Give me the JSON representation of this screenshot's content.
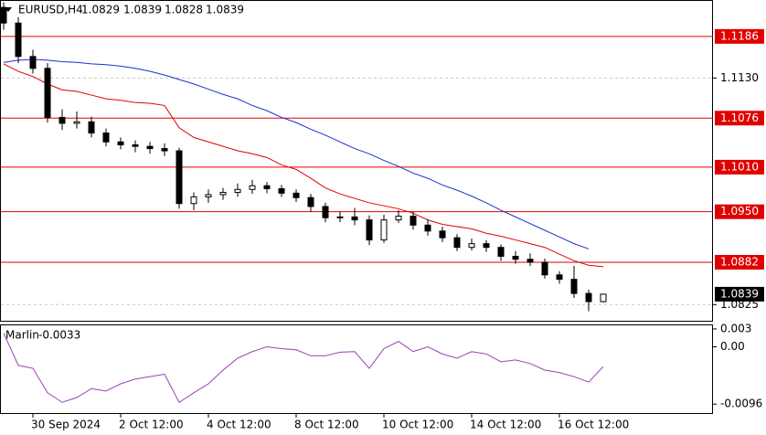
{
  "chart_data": [
    {
      "type": "candlestick",
      "title": "EURUSD,H4",
      "categories": [
        null,
        null,
        "30 Sep 2024",
        null,
        null,
        null,
        null,
        null,
        "2 Oct 12:00",
        null,
        null,
        null,
        null,
        null,
        "4 Oct 12:00",
        null,
        null,
        null,
        null,
        null,
        "8 Oct 12:00",
        null,
        null,
        null,
        null,
        null,
        "10 Oct 12:00",
        null,
        null,
        null,
        null,
        null,
        "14 Oct 12:00",
        null,
        null,
        null,
        null,
        null,
        "16 Oct 12:00",
        null,
        null,
        null
      ],
      "ohlc": [
        [
          1.1225,
          1.1232,
          1.1195,
          1.1204
        ],
        [
          1.1204,
          1.1212,
          1.115,
          1.1159
        ],
        [
          1.1159,
          1.1168,
          1.1136,
          1.1143
        ],
        [
          1.1143,
          1.115,
          1.107,
          1.1077
        ],
        [
          1.1077,
          1.1088,
          1.106,
          1.1069
        ],
        [
          1.1069,
          1.1085,
          1.1062,
          1.1071
        ],
        [
          1.1071,
          1.1078,
          1.105,
          1.1056
        ],
        [
          1.1056,
          1.1062,
          1.1038,
          1.1044
        ],
        [
          1.1044,
          1.105,
          1.1034,
          1.104
        ],
        [
          1.104,
          1.1046,
          1.103,
          1.1038
        ],
        [
          1.1038,
          1.1044,
          1.1028,
          1.1035
        ],
        [
          1.1035,
          1.1042,
          1.1025,
          1.1032
        ],
        [
          1.1032,
          1.1036,
          1.0954,
          1.0961
        ],
        [
          1.0961,
          1.0976,
          1.0952,
          1.097
        ],
        [
          1.097,
          1.098,
          1.0962,
          1.0973
        ],
        [
          1.0973,
          1.0982,
          1.0966,
          1.0976
        ],
        [
          1.0976,
          1.0988,
          1.097,
          1.098
        ],
        [
          1.098,
          1.0993,
          1.0974,
          1.0985
        ],
        [
          1.0985,
          1.099,
          1.0975,
          1.0981
        ],
        [
          1.0981,
          1.0986,
          1.097,
          1.0975
        ],
        [
          1.0975,
          1.098,
          1.0963,
          1.0969
        ],
        [
          1.0969,
          1.0974,
          1.095,
          1.0957
        ],
        [
          1.0957,
          1.0962,
          1.0936,
          1.0942
        ],
        [
          1.0942,
          1.095,
          1.0936,
          1.0943
        ],
        [
          1.0943,
          1.0955,
          1.0932,
          1.0939
        ],
        [
          1.0939,
          1.0945,
          1.0905,
          1.0912
        ],
        [
          1.0912,
          1.0946,
          1.0908,
          1.0939
        ],
        [
          1.0939,
          1.0952,
          1.0935,
          1.0944
        ],
        [
          1.0944,
          1.095,
          1.0926,
          1.0932
        ],
        [
          1.0932,
          1.094,
          1.0918,
          1.0924
        ],
        [
          1.0924,
          1.093,
          1.0909,
          1.0915
        ],
        [
          1.0915,
          1.092,
          1.0897,
          1.0902
        ],
        [
          1.0902,
          1.0914,
          1.0898,
          1.0907
        ],
        [
          1.0907,
          1.0912,
          1.0896,
          1.0902
        ],
        [
          1.0902,
          1.0906,
          1.0884,
          1.089
        ],
        [
          1.089,
          1.0897,
          1.088,
          1.0886
        ],
        [
          1.0886,
          1.0894,
          1.0877,
          1.0882
        ],
        [
          1.0882,
          1.0887,
          1.086,
          1.0865
        ],
        [
          1.0865,
          1.087,
          1.0853,
          1.0859
        ],
        [
          1.0859,
          1.0877,
          1.0834,
          1.084
        ],
        [
          1.084,
          1.0845,
          1.0816,
          1.0829
        ],
        [
          1.0829,
          1.0839,
          1.0828,
          1.0839
        ]
      ],
      "ma": [
        {
          "color": "#e00000",
          "values": [
            1.1149,
            1.1139,
            1.1132,
            1.1122,
            1.1114,
            1.1112,
            1.1107,
            1.1102,
            1.11,
            1.1097,
            1.1096,
            1.1093,
            1.1063,
            1.105,
            1.1044,
            1.1038,
            1.1032,
            1.1028,
            1.1023,
            1.1013,
            1.1007,
            1.0995,
            1.0982,
            1.0974,
            1.0968,
            1.0962,
            1.0958,
            1.0954,
            1.0948,
            1.0939,
            1.0933,
            1.093,
            1.0927,
            1.0921,
            1.0917,
            1.0912,
            1.0907,
            1.0902,
            1.0893,
            1.0884,
            1.0878,
            1.0876
          ]
        },
        {
          "color": "#1c2fd0",
          "values": [
            1.1151,
            1.1154,
            1.1155,
            1.1154,
            1.1152,
            1.1151,
            1.1149,
            1.1148,
            1.1146,
            1.1143,
            1.1139,
            1.1134,
            1.1128,
            1.1122,
            1.1115,
            1.1108,
            1.1102,
            1.1093,
            1.1086,
            1.1077,
            1.107,
            1.1061,
            1.1053,
            1.1044,
            1.1035,
            1.1028,
            1.1019,
            1.1011,
            1.1002,
            1.0995,
            1.0986,
            1.0979,
            1.0971,
            1.0962,
            1.0952,
            1.0943,
            1.0934,
            1.0925,
            1.0916,
            1.0907,
            1.09,
            null
          ]
        }
      ],
      "levels": [
        1.1186,
        1.1076,
        {
          "value": 1.101,
          "label": "1.1010"
        },
        {
          "value": 1.095,
          "label": "1.0950"
        },
        1.0882
      ],
      "level_color": "#e00000",
      "ylim": [
        1.0802,
        1.1235
      ],
      "yticks": [
        {
          "value": 1.113,
          "label": "1.1130"
        },
        1.0825
      ],
      "grid": true
    },
    {
      "type": "line",
      "title": "Marlin",
      "color": "#9b3fb5",
      "values": [
        0.0023,
        -0.0031,
        -0.0036,
        -0.0077,
        -0.0093,
        -0.0085,
        -0.007,
        -0.0074,
        -0.0062,
        -0.0054,
        -0.005,
        -0.0046,
        -0.0093,
        -0.0077,
        -0.0062,
        -0.0039,
        -0.0019,
        -0.0008,
        0,
        -0.0003,
        -0.0005,
        -0.0015,
        -0.0015,
        -0.0009,
        -0.0008,
        -0.0036,
        -0.0003,
        0.0009,
        -0.0008,
        0,
        -0.0012,
        -0.0019,
        -0.0008,
        -0.0012,
        -0.0025,
        -0.0022,
        -0.0028,
        -0.0039,
        -0.0043,
        -0.005,
        -0.0059,
        -0.0033
      ],
      "ylim": [
        -0.0111,
        0.0036
      ],
      "yticks": [
        0.003,
        {
          "value": 0,
          "label": "0.00"
        },
        -0.0096
      ]
    }
  ]
}
